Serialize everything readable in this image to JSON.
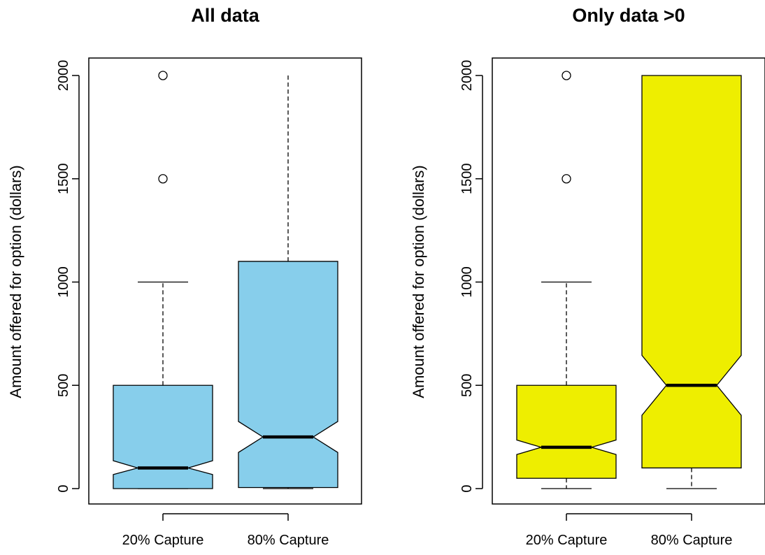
{
  "chart_data": [
    {
      "type": "boxplot",
      "notched": true,
      "title": "All data",
      "ylabel": "Amount offered for option (dollars)",
      "ylim": [
        0,
        2000
      ],
      "yticks": [
        0,
        500,
        1000,
        1500,
        2000
      ],
      "fill_color": "#87CEEB",
      "categories": [
        "20% Capture",
        "80% Capture"
      ],
      "boxes": [
        {
          "category": "20% Capture",
          "whisker_low": 0,
          "q1": 0,
          "median": 100,
          "q3": 500,
          "whisker_high": 1000,
          "notch_low": 68,
          "notch_high": 135,
          "outliers": [
            1500,
            2000
          ]
        },
        {
          "category": "80% Capture",
          "whisker_low": 0,
          "q1": 5,
          "median": 250,
          "q3": 1100,
          "whisker_high": 2000,
          "notch_low": 175,
          "notch_high": 325,
          "outliers": []
        }
      ]
    },
    {
      "type": "boxplot",
      "notched": true,
      "title": "Only data >0",
      "ylabel": "Amount offered for option (dollars)",
      "ylim": [
        0,
        2000
      ],
      "yticks": [
        0,
        500,
        1000,
        1500,
        2000
      ],
      "fill_color": "#EEEE00",
      "categories": [
        "20% Capture",
        "80% Capture"
      ],
      "boxes": [
        {
          "category": "20% Capture",
          "whisker_low": 0,
          "q1": 50,
          "median": 200,
          "q3": 500,
          "whisker_high": 1000,
          "notch_low": 165,
          "notch_high": 235,
          "outliers": [
            1500,
            2000
          ]
        },
        {
          "category": "80% Capture",
          "whisker_low": 0,
          "q1": 100,
          "median": 500,
          "q3": 2000,
          "whisker_high": 2000,
          "notch_low": 355,
          "notch_high": 645,
          "outliers": []
        }
      ]
    }
  ]
}
